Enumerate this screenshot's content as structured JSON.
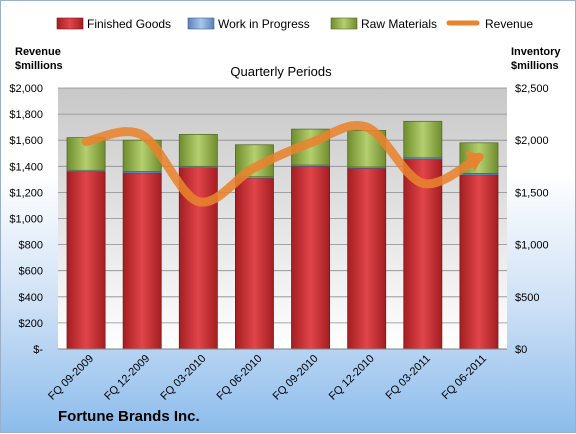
{
  "chart_data": {
    "type": "bar",
    "subtitle": "Quarterly Periods",
    "company": "Fortune Brands Inc.",
    "left_axis_title": [
      "Revenue",
      "$millions"
    ],
    "right_axis_title": [
      "Inventory",
      "$millions"
    ],
    "categories": [
      "FQ 09-2009",
      "FQ 12-2009",
      "FQ 03-2010",
      "FQ 06-2010",
      "FQ 09-2010",
      "FQ 12-2010",
      "FQ 03-2011",
      "FQ 06-2011"
    ],
    "left_ylim": [
      0,
      2000
    ],
    "right_ylim": [
      0,
      2500
    ],
    "left_ticks": [
      "$-",
      "$200",
      "$400",
      "$600",
      "$800",
      "$1,000",
      "$1,200",
      "$1,400",
      "$1,600",
      "$1,800",
      "$2,000"
    ],
    "right_ticks": [
      "$0",
      "$500",
      "$1,000",
      "$1,500",
      "$2,000",
      "$2,500"
    ],
    "grid": true,
    "legend_position": "top",
    "series": [
      {
        "name": "Finished Goods",
        "type": "stacked-bar",
        "axis": "left",
        "color": "#c0282d",
        "values": [
          1360,
          1350,
          1390,
          1310,
          1400,
          1385,
          1455,
          1335
        ]
      },
      {
        "name": "Work in Progress",
        "type": "stacked-bar",
        "axis": "left",
        "color": "#7aa2d4",
        "values": [
          10,
          10,
          10,
          10,
          10,
          10,
          10,
          10
        ]
      },
      {
        "name": "Raw Materials",
        "type": "stacked-bar",
        "axis": "left",
        "color": "#94b44c",
        "values": [
          250,
          240,
          245,
          245,
          275,
          280,
          280,
          235
        ]
      },
      {
        "name": "Revenue",
        "type": "line",
        "axis": "left",
        "color": "#e8832e",
        "values": [
          1590,
          1640,
          1130,
          1390,
          1580,
          1700,
          1270,
          1470
        ]
      }
    ]
  }
}
